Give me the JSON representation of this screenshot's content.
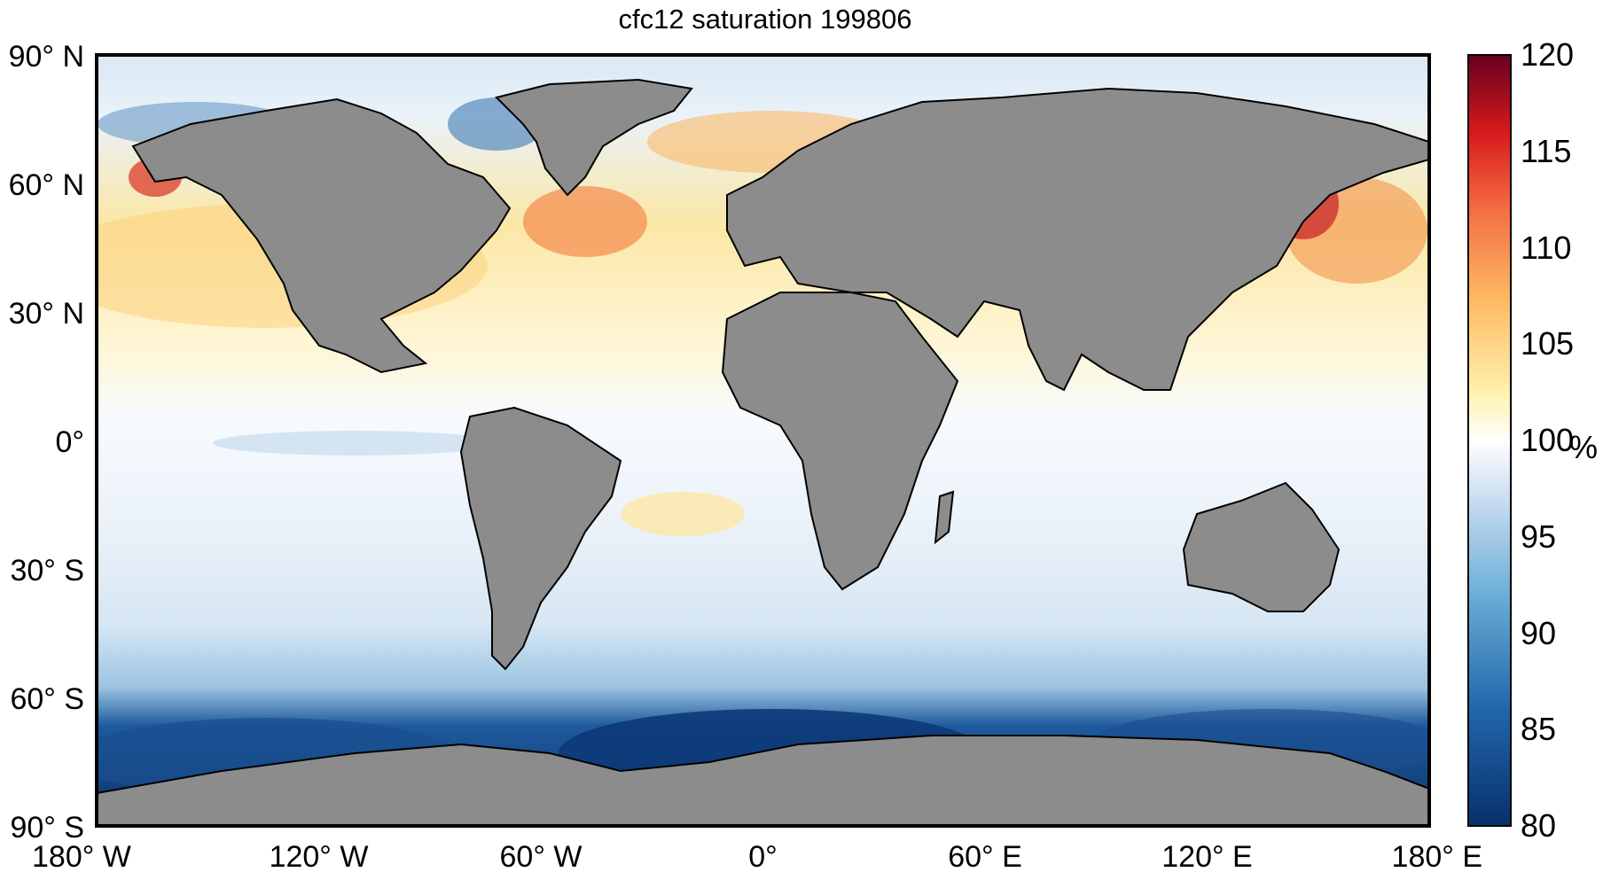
{
  "title": "cfc12 saturation 199806",
  "axes": {
    "y_ticks": [
      {
        "text": "90° N",
        "lat": 90
      },
      {
        "text": "60° N",
        "lat": 60
      },
      {
        "text": "30° N",
        "lat": 30
      },
      {
        "text": "0°",
        "lat": 0
      },
      {
        "text": "30° S",
        "lat": -30
      },
      {
        "text": "60° S",
        "lat": -60
      },
      {
        "text": "90° S",
        "lat": -90
      }
    ],
    "x_ticks": [
      {
        "text": "180° W",
        "lon": -180
      },
      {
        "text": "120° W",
        "lon": -120
      },
      {
        "text": "60° W",
        "lon": -60
      },
      {
        "text": "0°",
        "lon": 0
      },
      {
        "text": "60° E",
        "lon": 60
      },
      {
        "text": "120° E",
        "lon": 120
      },
      {
        "text": "180° E",
        "lon": 180
      }
    ]
  },
  "colorbar": {
    "min": 80,
    "max": 120,
    "ticks": [
      "120",
      "115",
      "110",
      "105",
      "100",
      "95",
      "90",
      "85",
      "80"
    ],
    "unit": "%",
    "colors_low_to_high": [
      "#08306b",
      "#2166ac",
      "#4393c3",
      "#92c5de",
      "#d1e5f0",
      "#f7fbff",
      "#fee090",
      "#fdae61",
      "#f46d43",
      "#d73027",
      "#a50026",
      "#67001f"
    ]
  },
  "colors": {
    "land": "#8c8c8c",
    "ocean_base": "#ffffff",
    "frame": "#000000"
  }
}
